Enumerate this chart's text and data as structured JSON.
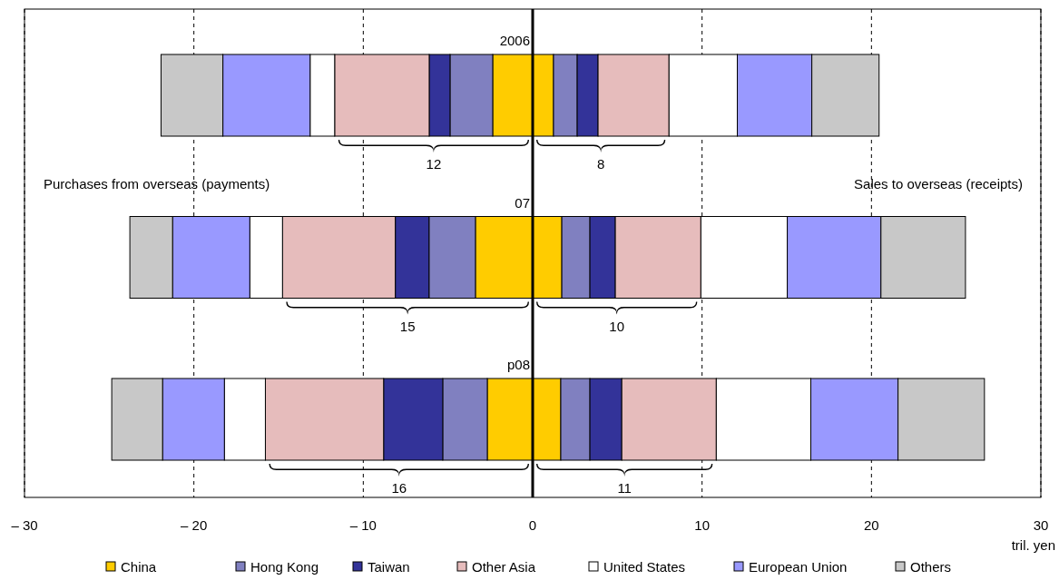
{
  "chart_data": {
    "type": "bar",
    "orientation": "horizontal",
    "stacked": true,
    "xlabel": "tril. yen",
    "categories": [
      "2006",
      "07",
      "p08"
    ],
    "xlim": [
      -30,
      30
    ],
    "xticks": [
      {
        "value": -30,
        "label": "– 30"
      },
      {
        "value": -20,
        "label": "– 20"
      },
      {
        "value": -10,
        "label": "– 10"
      },
      0,
      10,
      20,
      30
    ],
    "grid": "x",
    "line_style": "dashed",
    "legend": "bottom",
    "series": [
      {
        "name": "China",
        "color": "#ffcc00",
        "values": [
          -2.36,
          -3.38,
          -2.68
        ]
      },
      {
        "name": "Hong Kong",
        "color": "#8080c0",
        "values": [
          -2.52,
          -2.74,
          -2.63
        ]
      },
      {
        "name": "Taiwan",
        "color": "#333399",
        "values": [
          -1.23,
          -1.99,
          -3.49
        ]
      },
      {
        "name": "Other Asia",
        "color": "#e6bcbc",
        "values": [
          -5.58,
          -6.66,
          -6.98
        ]
      },
      {
        "name": "United States",
        "color": "#ffffff",
        "values": [
          -1.45,
          -1.93,
          -2.42
        ]
      },
      {
        "name": "European Union",
        "color": "#9999ff",
        "values": [
          -5.15,
          -4.56,
          -3.65
        ]
      },
      {
        "name": "Others",
        "color": "#c8c8c8",
        "values": [
          -3.65,
          -2.52,
          -3.0
        ]
      },
      {
        "color": "#ffcc00",
        "values": [
          1.23,
          1.72,
          1.66
        ]
      },
      {
        "color": "#8080c0",
        "values": [
          1.4,
          1.66,
          1.72
        ]
      },
      {
        "color": "#333399",
        "values": [
          1.23,
          1.5,
          1.88
        ]
      },
      {
        "color": "#e6bcbc",
        "values": [
          4.19,
          5.05,
          5.58
        ]
      },
      {
        "color": "#ffffff",
        "values": [
          4.03,
          5.1,
          5.58
        ]
      },
      {
        "color": "#9999ff",
        "values": [
          4.4,
          5.53,
          5.15
        ]
      },
      {
        "color": "#c8c8c8",
        "values": [
          3.97,
          4.99,
          5.1
        ]
      }
    ],
    "annotations": [
      "Purchases from overseas (payments)",
      "Sales to overseas (receipts)",
      "12",
      "8",
      "15",
      "10",
      "16",
      "11"
    ]
  }
}
